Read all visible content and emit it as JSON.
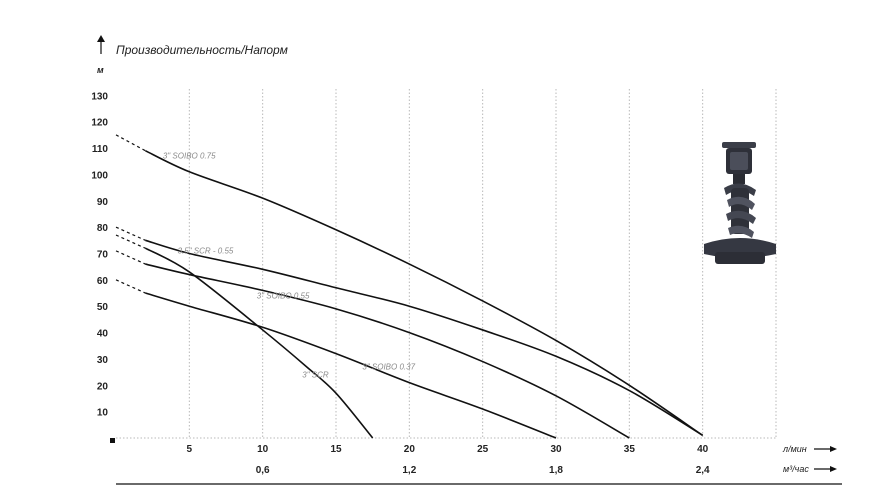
{
  "chart_data": {
    "type": "line",
    "title": "Производительность/Напорм",
    "ylabel": "м",
    "y_ticks": [
      10,
      20,
      30,
      40,
      50,
      60,
      70,
      80,
      90,
      100,
      110,
      120,
      130
    ],
    "ylim": [
      0,
      140
    ],
    "xlabel": "л/мин",
    "x_ticks": [
      5,
      10,
      15,
      20,
      25,
      30,
      35,
      40
    ],
    "xlim": [
      0,
      45
    ],
    "x2label": "м³/час",
    "x2_ticks": [
      "0,6",
      "1,2",
      "1,8",
      "2,4"
    ],
    "x2_tick_values": [
      0.6,
      1.2,
      1.8,
      2.4
    ],
    "grid": "vertical",
    "series": [
      {
        "name": "3\" SOIBO 0.75",
        "points": [
          [
            0,
            115
          ],
          [
            2,
            109
          ],
          [
            5,
            101
          ],
          [
            10,
            91
          ],
          [
            15,
            79
          ],
          [
            20,
            66
          ],
          [
            25,
            52
          ],
          [
            30,
            37
          ],
          [
            35,
            20
          ],
          [
            40,
            1
          ]
        ]
      },
      {
        "name": "3.5\" SCR - 0.55",
        "points": [
          [
            0,
            80
          ],
          [
            2,
            75
          ],
          [
            5,
            70
          ],
          [
            10,
            64
          ],
          [
            15,
            57
          ],
          [
            20,
            50
          ],
          [
            25,
            41
          ],
          [
            30,
            31
          ],
          [
            35,
            18
          ],
          [
            40,
            1
          ]
        ]
      },
      {
        "name": "3\" SOIBO 0.55",
        "points": [
          [
            0,
            71
          ],
          [
            2,
            66
          ],
          [
            5,
            62
          ],
          [
            10,
            56
          ],
          [
            15,
            49
          ],
          [
            20,
            40
          ],
          [
            25,
            29
          ],
          [
            30,
            16
          ],
          [
            35,
            0
          ]
        ]
      },
      {
        "name": "3\" SOIBO 0.37",
        "points": [
          [
            0,
            60
          ],
          [
            2,
            55
          ],
          [
            5,
            50
          ],
          [
            10,
            42
          ],
          [
            15,
            32
          ],
          [
            20,
            21
          ],
          [
            25,
            11
          ],
          [
            30,
            0
          ]
        ]
      },
      {
        "name": "3\" SCR",
        "points": [
          [
            0,
            77
          ],
          [
            2,
            72
          ],
          [
            5,
            63
          ],
          [
            10,
            41
          ],
          [
            13,
            27
          ],
          [
            15,
            17
          ],
          [
            17.5,
            0
          ]
        ]
      }
    ]
  },
  "legend_icons": {
    "y_arrow": "arrow-up-icon",
    "x_arrow": "arrow-right-icon",
    "pump": "pump-impeller-icon"
  }
}
